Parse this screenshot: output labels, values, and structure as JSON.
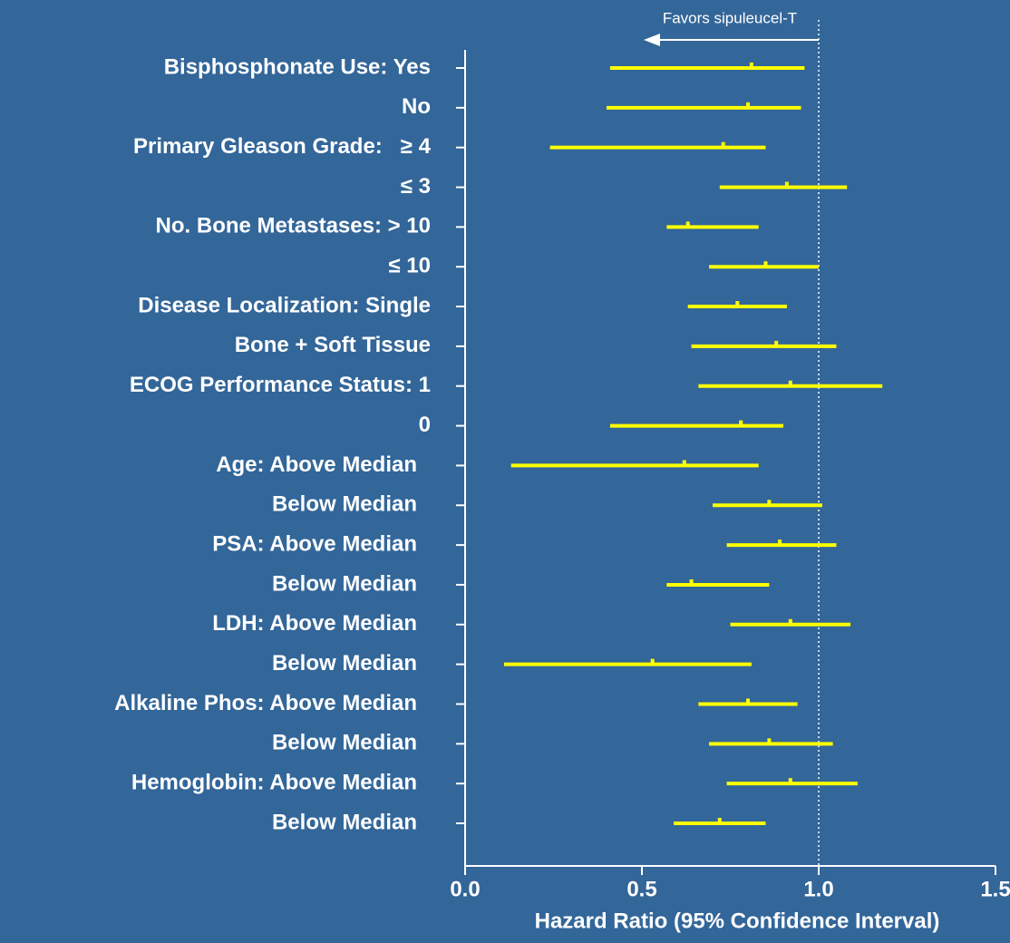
{
  "chart_data": {
    "type": "forest",
    "annotation": "Favors sipuleucel-T",
    "x_label": "Hazard Ratio (95% Confidence Interval)",
    "categories": [
      "Bisphosphonate Use: Yes",
      "No",
      "Primary Gleason Grade:   ≥ 4",
      "≤ 3",
      "No. Bone Metastases: > 10",
      "≤ 10",
      "Disease Localization: Single",
      "Bone + Soft Tissue",
      "ECOG Performance Status: 1",
      "0",
      "Age: Above Median",
      "Below Median",
      "PSA: Above Median",
      "Below Median",
      "LDH: Above Median",
      "Below Median",
      "Alkaline Phos: Above Median",
      "Below Median",
      "Hemoglobin: Above Median",
      "Below Median"
    ],
    "estimates": [
      0.81,
      0.8,
      0.73,
      0.91,
      0.63,
      0.85,
      0.77,
      0.88,
      0.92,
      0.78,
      0.62,
      0.86,
      0.89,
      0.64,
      0.92,
      0.53,
      0.8,
      0.86,
      0.92,
      0.72
    ],
    "lower": [
      0.41,
      0.4,
      0.24,
      0.72,
      0.57,
      0.69,
      0.63,
      0.64,
      0.66,
      0.41,
      0.13,
      0.7,
      0.74,
      0.57,
      0.75,
      0.11,
      0.66,
      0.69,
      0.74,
      0.59
    ],
    "upper": [
      0.96,
      0.95,
      0.85,
      1.08,
      0.83,
      1.0,
      0.91,
      1.05,
      1.18,
      0.9,
      0.83,
      1.01,
      1.05,
      0.86,
      1.09,
      0.81,
      0.94,
      1.04,
      1.11,
      0.85
    ],
    "color": "#ffff00",
    "reference_line": 1,
    "xlim": [
      0,
      1.5
    ],
    "xticks": [
      {
        "value": 0,
        "label": "0.0"
      },
      0.5,
      {
        "value": 1,
        "label": "1.0"
      },
      1.5
    ]
  }
}
